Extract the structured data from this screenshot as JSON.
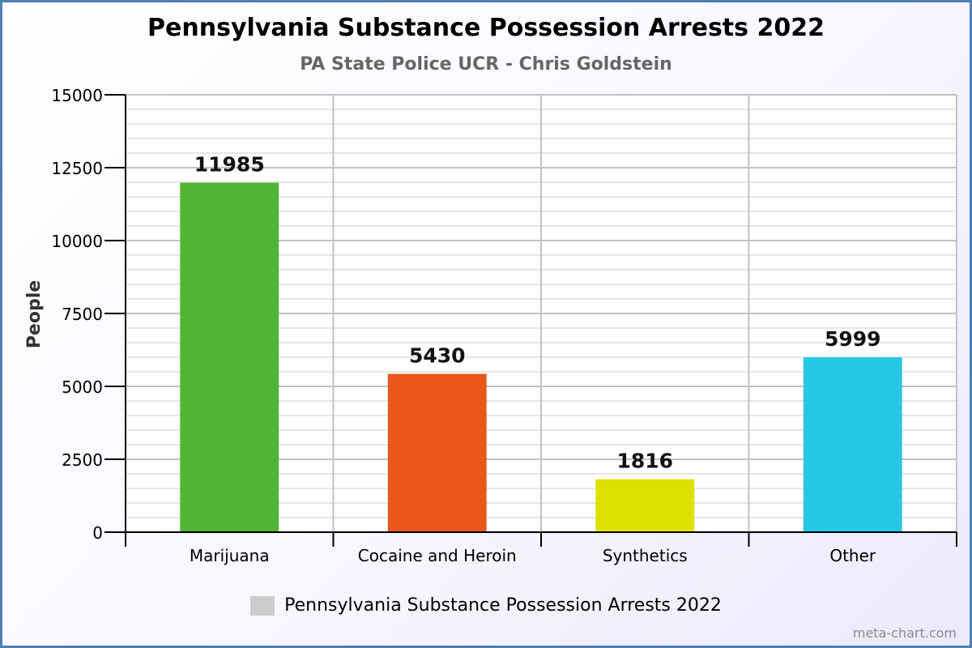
{
  "watermark": "meta-chart.com",
  "chart_data": {
    "type": "bar",
    "title": "Pennsylvania Substance Possession Arrests 2022",
    "subtitle": "PA State Police UCR - Chris Goldstein",
    "xlabel": "",
    "ylabel": "People",
    "ylim": [
      0,
      15000
    ],
    "yticks": [
      0,
      2500,
      5000,
      7500,
      10000,
      12500,
      15000
    ],
    "categories": [
      "Marijuana",
      "Cocaine and Heroin",
      "Synthetics",
      "Other"
    ],
    "series": [
      {
        "name": "Pennsylvania Substance Possession Arrests 2022",
        "values": [
          11985,
          5430,
          1816,
          5999
        ],
        "colors": [
          "#52b434",
          "#ea571c",
          "#dee000",
          "#26c9e3"
        ]
      }
    ],
    "legend_color": "#cccccc",
    "legend_position": "bottom",
    "grid": true,
    "data_labels": true
  }
}
